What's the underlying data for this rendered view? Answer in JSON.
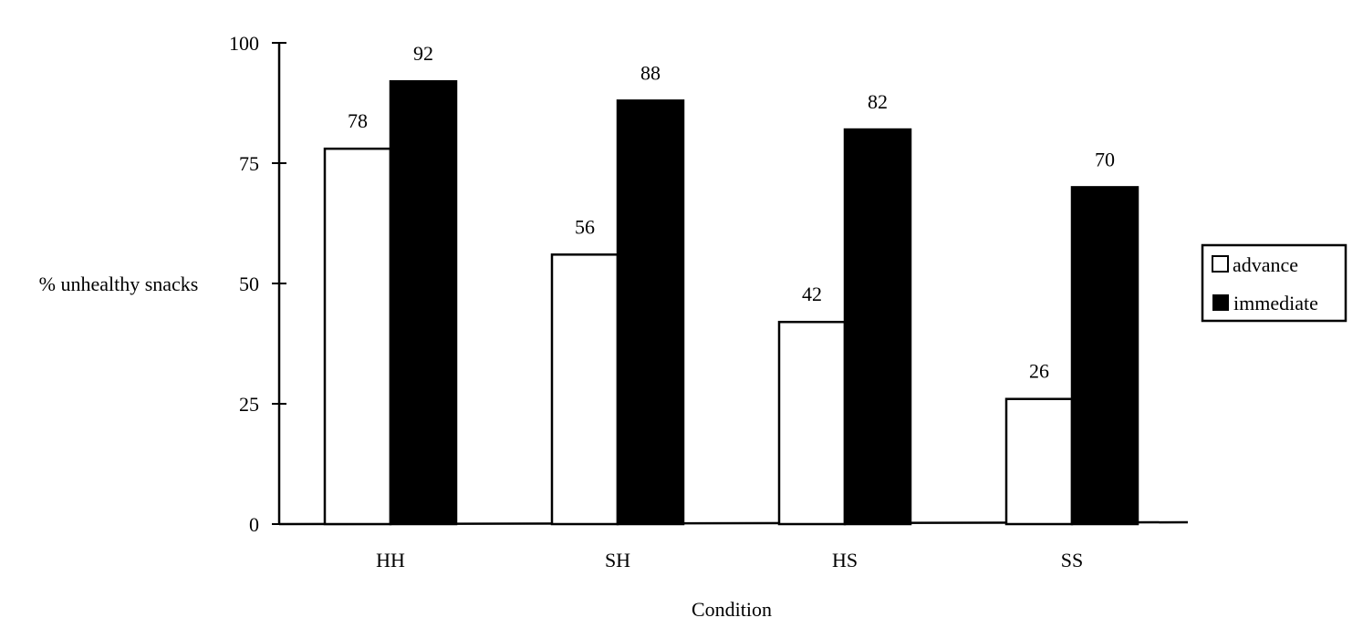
{
  "chart_data": {
    "type": "bar",
    "title": "",
    "xlabel": "Condition",
    "ylabel": "% unhealthy snacks",
    "categories": [
      "HH",
      "SH",
      "HS",
      "SS"
    ],
    "series": [
      {
        "name": "advance",
        "values": [
          78,
          56,
          42,
          26
        ],
        "color": "#ffffff"
      },
      {
        "name": "immediate",
        "values": [
          92,
          88,
          82,
          70
        ],
        "color": "#000000"
      }
    ],
    "ylim": [
      0,
      100
    ],
    "yticks": [
      "0",
      "25",
      "50",
      "75",
      "100"
    ],
    "grid": false,
    "legend": "right"
  }
}
